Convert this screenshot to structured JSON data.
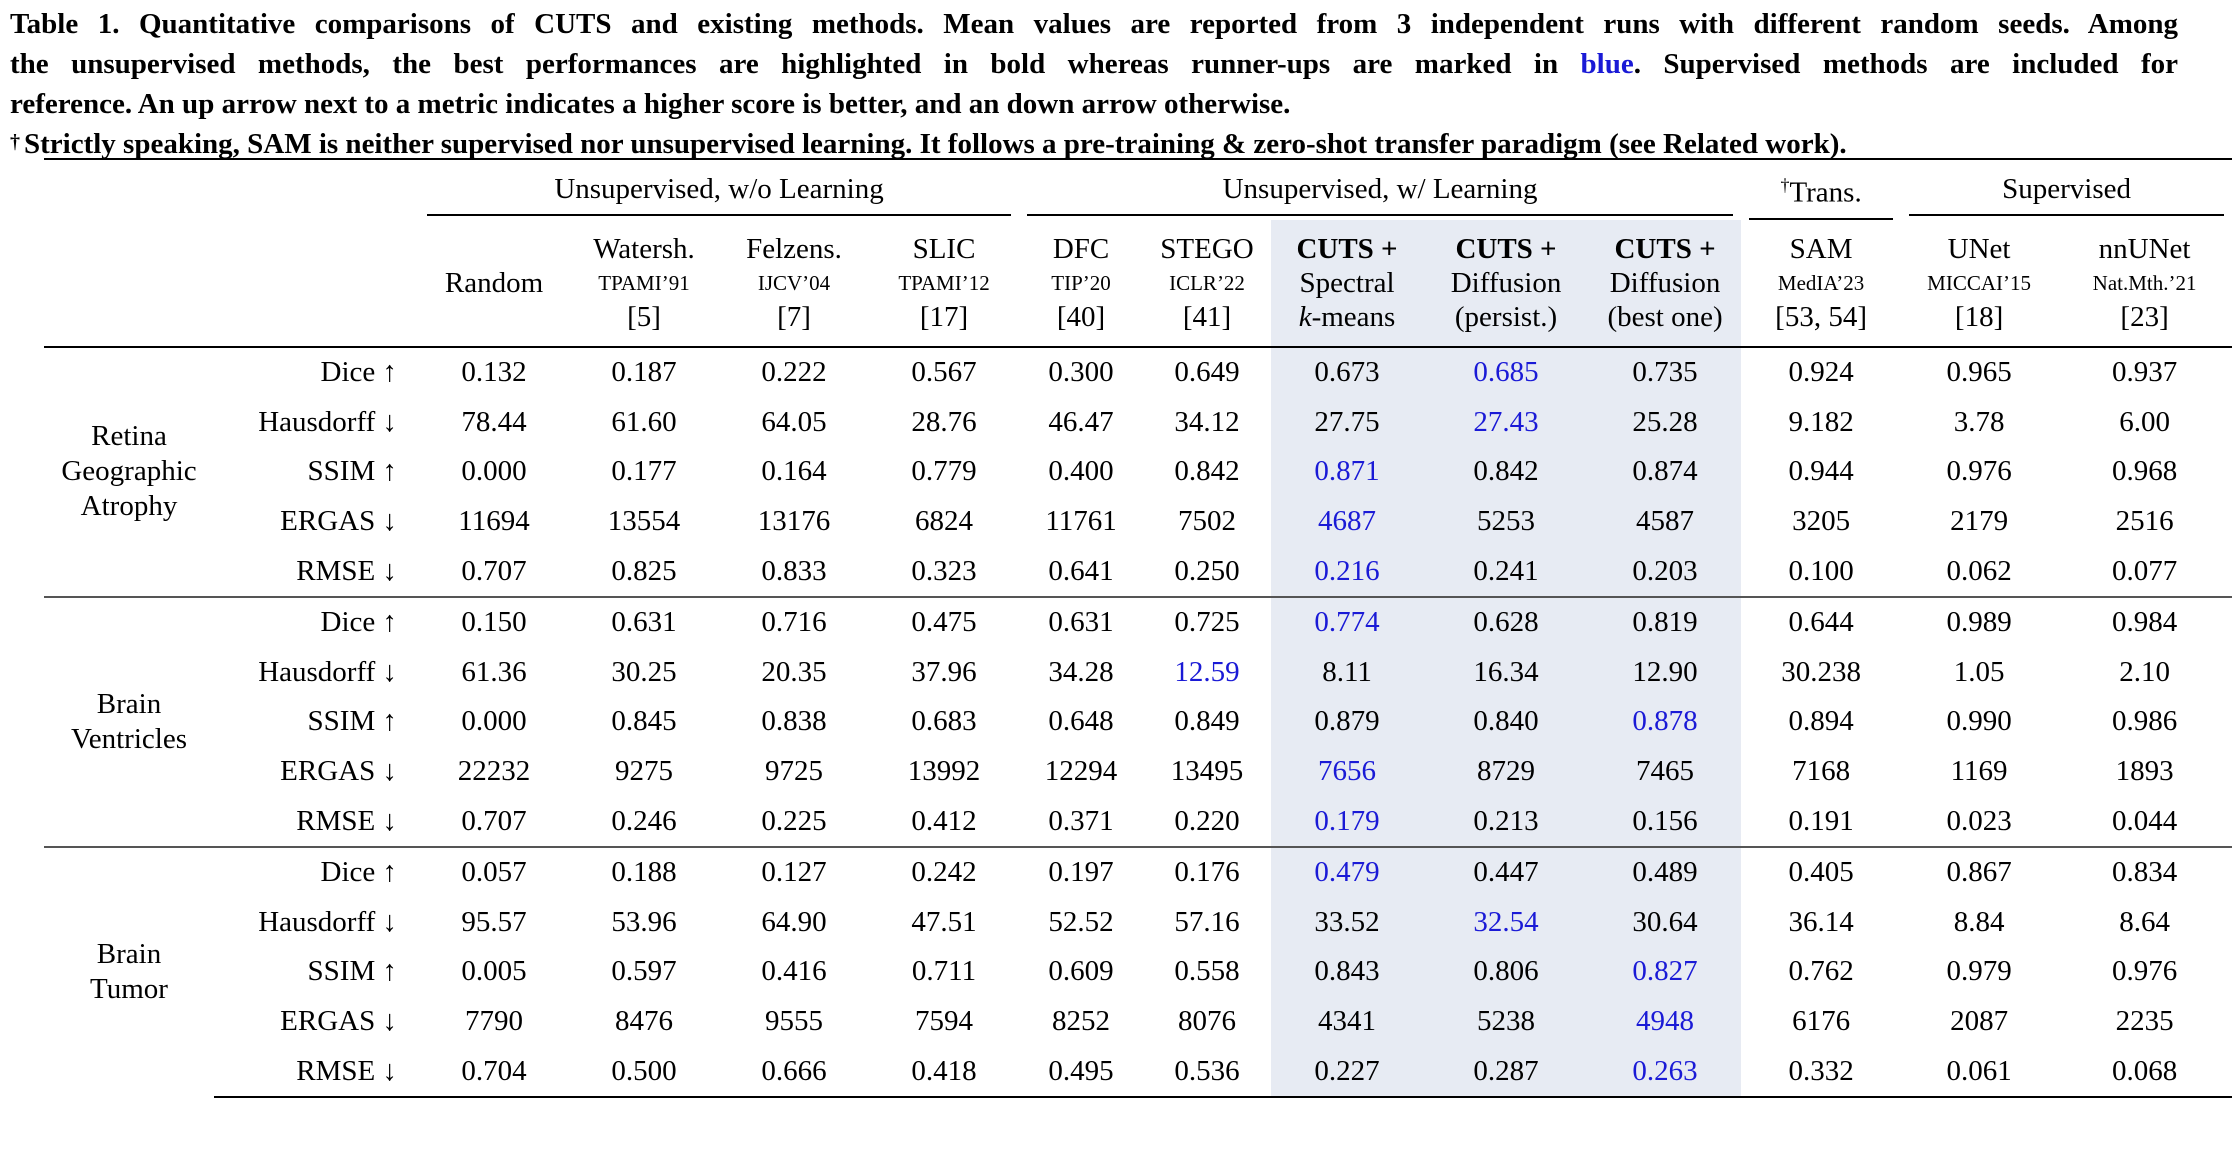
{
  "caption": {
    "line1": "Table 1. Quantitative comparisons of CUTS and existing methods. Mean values are reported from 3 independent runs with different random seeds. Among",
    "line2_before": "the unsupervised methods, the best performances are highlighted in bold whereas runner-ups are marked in",
    "line2_blue": "blue",
    "line2_after": ". Supervised methods are included for",
    "line3": "reference. An up arrow next to a metric indicates a higher score is better, and an down arrow otherwise.",
    "dagger": "†",
    "line4": "Strictly speaking, SAM is neither supervised nor unsupervised learning. It follows a pre-training & zero-shot transfer paradigm (see Related work)."
  },
  "groups": {
    "unsup_wo": "Unsupervised, w/o Learning",
    "unsup_w": "Unsupervised, w/ Learning",
    "trans_dagger": "†",
    "trans": "Trans.",
    "supervised": "Supervised"
  },
  "columns": [
    {
      "l1": "Random",
      "l2": "",
      "l3": ""
    },
    {
      "l1": "Watersh.",
      "l2": "TPAMI’91",
      "l3": "[5]"
    },
    {
      "l1": "Felzens.",
      "l2": "IJCV’04",
      "l3": "[7]"
    },
    {
      "l1": "SLIC",
      "l2": "TPAMI’12",
      "l3": "[17]"
    },
    {
      "l1": "DFC",
      "l2": "TIP’20",
      "l3": "[40]"
    },
    {
      "l1": "STEGO",
      "l2": "ICLR’22",
      "l3": "[41]"
    },
    {
      "l1": "CUTS +",
      "l2": "Spectral",
      "l3a": "k",
      "l3b": "-means"
    },
    {
      "l1": "CUTS +",
      "l2": "Diffusion",
      "l3": "(persist.)"
    },
    {
      "l1": "CUTS +",
      "l2": "Diffusion",
      "l3": "(best one)"
    },
    {
      "l1": "SAM",
      "l2": "MedIA’23",
      "l3": "[53, 54]"
    },
    {
      "l1": "UNet",
      "l2": "MICCAI’15",
      "l3": "[18]"
    },
    {
      "l1": "nnUNet",
      "l2": "Nat.Mth.’21",
      "l3": "[23]"
    }
  ],
  "blocks": [
    {
      "dataset": [
        "Retina",
        "Geographic",
        "Atrophy"
      ],
      "rows": [
        {
          "metric": "Dice ↑",
          "values": [
            "0.132",
            "0.187",
            "0.222",
            "0.567",
            "0.300",
            "0.649",
            "0.673",
            "0.685",
            "0.735",
            "0.924",
            "0.965",
            "0.937"
          ],
          "style": [
            "",
            "",
            "",
            "",
            "",
            "",
            "",
            "blue",
            "bold",
            "",
            "",
            ""
          ]
        },
        {
          "metric": "Hausdorff ↓",
          "values": [
            "78.44",
            "61.60",
            "64.05",
            "28.76",
            "46.47",
            "34.12",
            "27.75",
            "27.43",
            "25.28",
            "9.182",
            "3.78",
            "6.00"
          ],
          "style": [
            "",
            "",
            "",
            "",
            "",
            "",
            "",
            "blue",
            "bold",
            "",
            "",
            ""
          ]
        },
        {
          "metric": "SSIM ↑",
          "values": [
            "0.000",
            "0.177",
            "0.164",
            "0.779",
            "0.400",
            "0.842",
            "0.871",
            "0.842",
            "0.874",
            "0.944",
            "0.976",
            "0.968"
          ],
          "style": [
            "",
            "",
            "",
            "",
            "",
            "",
            "blue",
            "",
            "bold",
            "",
            "",
            ""
          ]
        },
        {
          "metric": "ERGAS ↓",
          "values": [
            "11694",
            "13554",
            "13176",
            "6824",
            "11761",
            "7502",
            "4687",
            "5253",
            "4587",
            "3205",
            "2179",
            "2516"
          ],
          "style": [
            "",
            "",
            "",
            "",
            "",
            "",
            "blue",
            "",
            "bold",
            "",
            "",
            ""
          ]
        },
        {
          "metric": "RMSE ↓",
          "values": [
            "0.707",
            "0.825",
            "0.833",
            "0.323",
            "0.641",
            "0.250",
            "0.216",
            "0.241",
            "0.203",
            "0.100",
            "0.062",
            "0.077"
          ],
          "style": [
            "",
            "",
            "",
            "",
            "",
            "",
            "blue",
            "",
            "bold",
            "",
            "",
            ""
          ]
        }
      ]
    },
    {
      "dataset": [
        "Brain",
        "Ventricles"
      ],
      "rows": [
        {
          "metric": "Dice ↑",
          "values": [
            "0.150",
            "0.631",
            "0.716",
            "0.475",
            "0.631",
            "0.725",
            "0.774",
            "0.628",
            "0.819",
            "0.644",
            "0.989",
            "0.984"
          ],
          "style": [
            "",
            "",
            "",
            "",
            "",
            "",
            "blue",
            "",
            "bold",
            "",
            "",
            ""
          ]
        },
        {
          "metric": "Hausdorff ↓",
          "values": [
            "61.36",
            "30.25",
            "20.35",
            "37.96",
            "34.28",
            "12.59",
            "8.11",
            "16.34",
            "12.90",
            "30.238",
            "1.05",
            "2.10"
          ],
          "style": [
            "",
            "",
            "",
            "",
            "",
            "blue",
            "bold",
            "",
            "",
            "",
            "",
            ""
          ]
        },
        {
          "metric": "SSIM ↑",
          "values": [
            "0.000",
            "0.845",
            "0.838",
            "0.683",
            "0.648",
            "0.849",
            "0.879",
            "0.840",
            "0.878",
            "0.894",
            "0.990",
            "0.986"
          ],
          "style": [
            "",
            "",
            "",
            "",
            "",
            "",
            "bold",
            "",
            "blue",
            "",
            "",
            ""
          ]
        },
        {
          "metric": "ERGAS ↓",
          "values": [
            "22232",
            "9275",
            "9725",
            "13992",
            "12294",
            "13495",
            "7656",
            "8729",
            "7465",
            "7168",
            "1169",
            "1893"
          ],
          "style": [
            "",
            "",
            "",
            "",
            "",
            "",
            "blue",
            "",
            "bold",
            "",
            "",
            ""
          ]
        },
        {
          "metric": "RMSE ↓",
          "values": [
            "0.707",
            "0.246",
            "0.225",
            "0.412",
            "0.371",
            "0.220",
            "0.179",
            "0.213",
            "0.156",
            "0.191",
            "0.023",
            "0.044"
          ],
          "style": [
            "",
            "",
            "",
            "",
            "",
            "",
            "blue",
            "",
            "bold",
            "",
            "",
            ""
          ]
        }
      ]
    },
    {
      "dataset": [
        "Brain",
        "Tumor"
      ],
      "rows": [
        {
          "metric": "Dice ↑",
          "values": [
            "0.057",
            "0.188",
            "0.127",
            "0.242",
            "0.197",
            "0.176",
            "0.479",
            "0.447",
            "0.489",
            "0.405",
            "0.867",
            "0.834"
          ],
          "style": [
            "",
            "",
            "",
            "",
            "",
            "",
            "blue",
            "",
            "bold",
            "",
            "",
            ""
          ]
        },
        {
          "metric": "Hausdorff ↓",
          "values": [
            "95.57",
            "53.96",
            "64.90",
            "47.51",
            "52.52",
            "57.16",
            "33.52",
            "32.54",
            "30.64",
            "36.14",
            "8.84",
            "8.64"
          ],
          "style": [
            "",
            "",
            "",
            "",
            "",
            "",
            "",
            "blue",
            "bold",
            "",
            "",
            ""
          ]
        },
        {
          "metric": "SSIM ↑",
          "values": [
            "0.005",
            "0.597",
            "0.416",
            "0.711",
            "0.609",
            "0.558",
            "0.843",
            "0.806",
            "0.827",
            "0.762",
            "0.979",
            "0.976"
          ],
          "style": [
            "",
            "",
            "",
            "",
            "",
            "",
            "bold",
            "",
            "blue",
            "",
            "",
            ""
          ]
        },
        {
          "metric": "ERGAS ↓",
          "values": [
            "7790",
            "8476",
            "9555",
            "7594",
            "8252",
            "8076",
            "4341",
            "5238",
            "4948",
            "6176",
            "2087",
            "2235"
          ],
          "style": [
            "",
            "",
            "",
            "",
            "",
            "",
            "bold",
            "",
            "blue",
            "",
            "",
            ""
          ]
        },
        {
          "metric": "RMSE ↓",
          "values": [
            "0.704",
            "0.500",
            "0.666",
            "0.418",
            "0.495",
            "0.536",
            "0.227",
            "0.287",
            "0.263",
            "0.332",
            "0.061",
            "0.068"
          ],
          "style": [
            "",
            "",
            "",
            "",
            "",
            "",
            "bold",
            "",
            "blue",
            "",
            "",
            ""
          ]
        }
      ]
    }
  ]
}
